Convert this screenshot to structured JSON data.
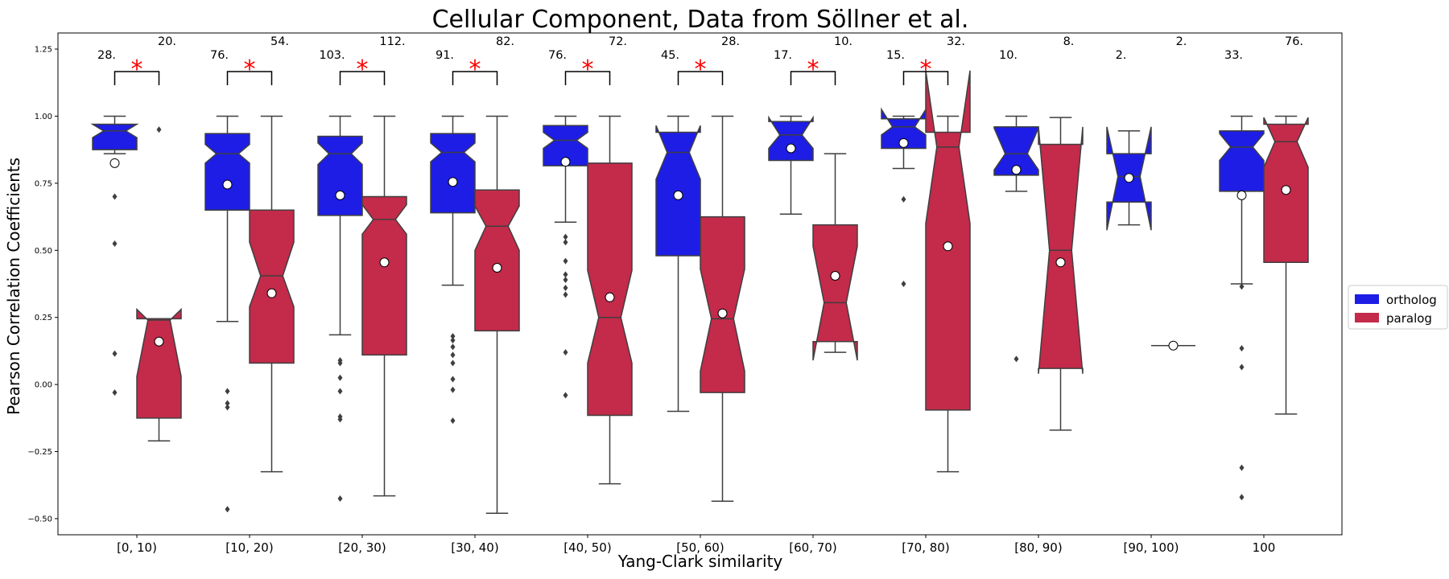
{
  "chart_data": {
    "type": "box",
    "title": "Cellular Component, Data from Söllner et al.",
    "xlabel": "Yang-Clark similarity",
    "ylabel": "Pearson Correlation Coefficients",
    "ylim": [
      -0.56,
      1.31
    ],
    "yticks": [
      -0.5,
      -0.25,
      0.0,
      0.25,
      0.5,
      0.75,
      1.0,
      1.25
    ],
    "ytick_labels": [
      "−0.50",
      "−0.25",
      "0.00",
      "0.25",
      "0.50",
      "0.75",
      "1.00",
      "1.25"
    ],
    "categories": [
      "[0, 10)",
      "[10, 20)",
      "[20, 30)",
      "[30, 40)",
      "[40, 50)",
      "[50, 60)",
      "[60, 70)",
      "[70, 80)",
      "[80, 90)",
      "[90, 100)",
      "100"
    ],
    "legend": {
      "position": "right",
      "entries": [
        "ortholog",
        "paralog"
      ]
    },
    "colors": {
      "ortholog": "#1d1de6",
      "paralog": "#c42a4a",
      "significance": "#ff0000"
    },
    "series": [
      {
        "name": "ortholog",
        "counts": [
          "28.",
          "76.",
          "103.",
          "91.",
          "76.",
          "45.",
          "17.",
          "15.",
          "10.",
          "2.",
          "33."
        ],
        "boxes": [
          {
            "q1": 0.875,
            "median": 0.945,
            "q3": 0.97,
            "whisker_low": 0.86,
            "whisker_high": 1.0,
            "notch_low": 0.92,
            "notch_high": 0.97,
            "mean": 0.825,
            "outliers": [
              0.7,
              0.525,
              0.115,
              -0.03
            ]
          },
          {
            "q1": 0.65,
            "median": 0.86,
            "q3": 0.935,
            "whisker_low": 0.235,
            "whisker_high": 1.0,
            "notch_low": 0.825,
            "notch_high": 0.895,
            "mean": 0.745,
            "outliers": [
              -0.025,
              -0.07,
              -0.085,
              -0.465
            ]
          },
          {
            "q1": 0.63,
            "median": 0.86,
            "q3": 0.925,
            "whisker_low": 0.185,
            "whisker_high": 1.0,
            "notch_low": 0.82,
            "notch_high": 0.9,
            "mean": 0.705,
            "outliers": [
              0.09,
              0.08,
              0.025,
              -0.025,
              -0.12,
              -0.13,
              -0.425
            ]
          },
          {
            "q1": 0.64,
            "median": 0.865,
            "q3": 0.935,
            "whisker_low": 0.37,
            "whisker_high": 1.0,
            "notch_low": 0.83,
            "notch_high": 0.9,
            "mean": 0.755,
            "outliers": [
              0.18,
              0.165,
              0.14,
              0.11,
              0.08,
              0.02,
              -0.02,
              -0.135
            ]
          },
          {
            "q1": 0.815,
            "median": 0.91,
            "q3": 0.965,
            "whisker_low": 0.605,
            "whisker_high": 1.0,
            "notch_low": 0.88,
            "notch_high": 0.94,
            "mean": 0.83,
            "outliers": [
              0.55,
              0.53,
              0.46,
              0.41,
              0.39,
              0.36,
              0.335,
              0.12,
              -0.04
            ]
          },
          {
            "q1": 0.48,
            "median": 0.865,
            "q3": 0.94,
            "whisker_low": -0.1,
            "whisker_high": 1.0,
            "notch_low": 0.765,
            "notch_high": 0.965,
            "mean": 0.705,
            "outliers": []
          },
          {
            "q1": 0.835,
            "median": 0.93,
            "q3": 0.98,
            "whisker_low": 0.635,
            "whisker_high": 1.0,
            "notch_low": 0.88,
            "notch_high": 0.995,
            "mean": 0.88,
            "outliers": []
          },
          {
            "q1": 0.88,
            "median": 0.96,
            "q3": 0.99,
            "whisker_low": 0.805,
            "whisker_high": 1.0,
            "notch_low": 0.93,
            "notch_high": 1.025,
            "mean": 0.9,
            "outliers": [
              0.69,
              0.375
            ]
          },
          {
            "q1": 0.78,
            "median": 0.86,
            "q3": 0.96,
            "whisker_low": 0.72,
            "whisker_high": 1.0,
            "notch_low": 0.8,
            "notch_high": 0.955,
            "mean": 0.8,
            "outliers": [
              0.095
            ]
          },
          {
            "q1": 0.68,
            "median": 0.775,
            "q3": 0.86,
            "whisker_low": 0.595,
            "whisker_high": 0.945,
            "notch_low": 0.575,
            "notch_high": 0.96,
            "mean": 0.77,
            "outliers": []
          },
          {
            "q1": 0.72,
            "median": 0.885,
            "q3": 0.945,
            "whisker_low": 0.375,
            "whisker_high": 1.0,
            "notch_low": 0.835,
            "notch_high": 0.935,
            "mean": 0.705,
            "outliers": [
              0.365,
              0.135,
              0.065,
              -0.31,
              -0.42
            ]
          }
        ]
      },
      {
        "name": "paralog",
        "counts": [
          "20.",
          "54.",
          "112.",
          "82.",
          "72.",
          "28.",
          "10.",
          "32.",
          "8.",
          "2.",
          "76."
        ],
        "boxes": [
          {
            "q1": -0.125,
            "median": 0.24,
            "q3": 0.245,
            "whisker_low": -0.21,
            "whisker_high": 0.245,
            "notch_low": 0.03,
            "notch_high": 0.28,
            "mean": 0.16,
            "outliers": [
              0.95
            ]
          },
          {
            "q1": 0.08,
            "median": 0.405,
            "q3": 0.65,
            "whisker_low": -0.325,
            "whisker_high": 1.0,
            "notch_low": 0.29,
            "notch_high": 0.53,
            "mean": 0.34,
            "outliers": []
          },
          {
            "q1": 0.11,
            "median": 0.615,
            "q3": 0.7,
            "whisker_low": -0.415,
            "whisker_high": 1.0,
            "notch_low": 0.56,
            "notch_high": 0.67,
            "mean": 0.455,
            "outliers": []
          },
          {
            "q1": 0.2,
            "median": 0.59,
            "q3": 0.725,
            "whisker_low": -0.48,
            "whisker_high": 1.0,
            "notch_low": 0.5,
            "notch_high": 0.665,
            "mean": 0.435,
            "outliers": []
          },
          {
            "q1": -0.115,
            "median": 0.25,
            "q3": 0.825,
            "whisker_low": -0.37,
            "whisker_high": 1.0,
            "notch_low": 0.08,
            "notch_high": 0.425,
            "mean": 0.325,
            "outliers": []
          },
          {
            "q1": -0.03,
            "median": 0.245,
            "q3": 0.625,
            "whisker_low": -0.435,
            "whisker_high": 1.0,
            "notch_low": 0.05,
            "notch_high": 0.43,
            "mean": 0.265,
            "outliers": []
          },
          {
            "q1": 0.16,
            "median": 0.305,
            "q3": 0.595,
            "whisker_low": 0.12,
            "whisker_high": 0.86,
            "notch_low": 0.09,
            "notch_high": 0.515,
            "mean": 0.405,
            "outliers": []
          },
          {
            "q1": -0.095,
            "median": 0.885,
            "q3": 0.94,
            "whisker_low": -0.325,
            "whisker_high": 1.0,
            "notch_low": 0.6,
            "notch_high": 1.17,
            "mean": 0.515,
            "outliers": []
          },
          {
            "q1": 0.06,
            "median": 0.5,
            "q3": 0.895,
            "whisker_low": -0.17,
            "whisker_high": 0.995,
            "notch_low": 0.04,
            "notch_high": 0.96,
            "mean": 0.455,
            "outliers": []
          },
          {
            "q1": 0.145,
            "median": 0.145,
            "q3": 0.145,
            "whisker_low": 0.145,
            "whisker_high": 0.145,
            "notch_low": 0.145,
            "notch_high": 0.145,
            "mean": 0.145,
            "outliers": []
          },
          {
            "q1": 0.455,
            "median": 0.905,
            "q3": 0.97,
            "whisker_low": -0.11,
            "whisker_high": 1.0,
            "notch_low": 0.81,
            "notch_high": 0.995,
            "mean": 0.725,
            "outliers": []
          }
        ]
      }
    ],
    "significance": {
      "symbol": "*",
      "groups": [
        true,
        true,
        true,
        true,
        true,
        true,
        true,
        true,
        false,
        false,
        false
      ]
    }
  }
}
